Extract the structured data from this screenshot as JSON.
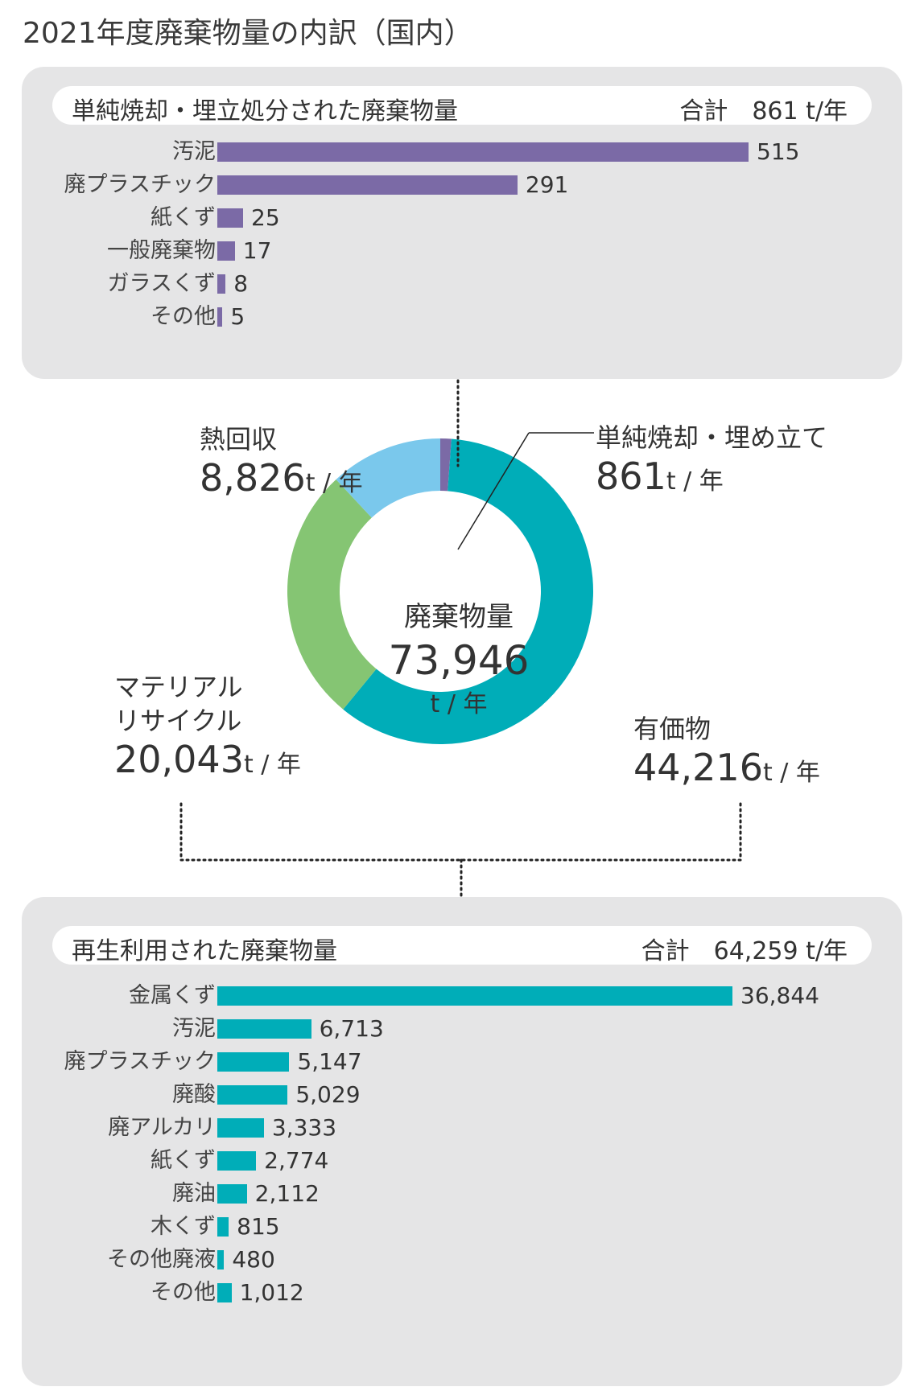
{
  "title": "2021年度廃棄物量の内訳（国内）",
  "landfill_panel": {
    "heading": "単純焼却・埋立処分された廃棄物量",
    "total": "合計　861 t/年",
    "items": [
      {
        "label": "汚泥",
        "value": 515,
        "text": "515"
      },
      {
        "label": "廃プラスチック",
        "value": 291,
        "text": "291"
      },
      {
        "label": "紙くず",
        "value": 25,
        "text": "25"
      },
      {
        "label": "一般廃棄物",
        "value": 17,
        "text": "17"
      },
      {
        "label": "ガラスくず",
        "value": 8,
        "text": "8"
      },
      {
        "label": "その他",
        "value": 5,
        "text": "5"
      }
    ]
  },
  "donut": {
    "center_title": "廃棄物量",
    "center_value": "73,946",
    "center_unit": "t / 年",
    "segments": [
      {
        "name": "単純焼却・埋め立て",
        "value": 861,
        "value_text": "861",
        "unit": "t / 年",
        "color": "#7b6aa6"
      },
      {
        "name": "有価物",
        "value": 44216,
        "value_text": "44,216",
        "unit": "t / 年",
        "color": "#00adb8"
      },
      {
        "name": "マテリアル\nリサイクル",
        "value": 20043,
        "value_text": "20,043",
        "unit": "t / 年",
        "color": "#85c573"
      },
      {
        "name": "熱回収",
        "value": 8826,
        "value_text": "8,826",
        "unit": "t / 年",
        "color": "#7ac8ec"
      }
    ]
  },
  "recycle_panel": {
    "heading": "再生利用された廃棄物量",
    "total": "合計　64,259 t/年",
    "items": [
      {
        "label": "金属くず",
        "value": 36844,
        "text": "36,844"
      },
      {
        "label": "汚泥",
        "value": 6713,
        "text": "6,713"
      },
      {
        "label": "廃プラスチック",
        "value": 5147,
        "text": "5,147"
      },
      {
        "label": "廃酸",
        "value": 5029,
        "text": "5,029"
      },
      {
        "label": "廃アルカリ",
        "value": 3333,
        "text": "3,333"
      },
      {
        "label": "紙くず",
        "value": 2774,
        "text": "2,774"
      },
      {
        "label": "廃油",
        "value": 2112,
        "text": "2,112"
      },
      {
        "label": "木くず",
        "value": 815,
        "text": "815"
      },
      {
        "label": "その他廃液",
        "value": 480,
        "text": "480"
      },
      {
        "label": "その他",
        "value": 1012,
        "text": "1,012"
      }
    ]
  },
  "colors": {
    "landfill_bar": "#7b6aa6",
    "recycle_bar": "#00adb8",
    "panel": "#e5e5e6"
  },
  "chart_data": [
    {
      "type": "bar",
      "title": "単純焼却・埋立処分された廃棄物量",
      "categories": [
        "汚泥",
        "廃プラスチック",
        "紙くず",
        "一般廃棄物",
        "ガラスくず",
        "その他"
      ],
      "values": [
        515,
        291,
        25,
        17,
        8,
        5
      ],
      "orientation": "horizontal"
    },
    {
      "type": "pie",
      "title": "廃棄物量",
      "categories": [
        "単純焼却・埋め立て",
        "有価物",
        "マテリアルリサイクル",
        "熱回収"
      ],
      "values": [
        861,
        44216,
        20043,
        8826
      ]
    },
    {
      "type": "bar",
      "title": "再生利用された廃棄物量",
      "categories": [
        "金属くず",
        "汚泥",
        "廃プラスチック",
        "廃酸",
        "廃アルカリ",
        "紙くず",
        "廃油",
        "木くず",
        "その他廃液",
        "その他"
      ],
      "values": [
        36844,
        6713,
        5147,
        5029,
        3333,
        2774,
        2112,
        815,
        480,
        1012
      ],
      "orientation": "horizontal"
    }
  ]
}
